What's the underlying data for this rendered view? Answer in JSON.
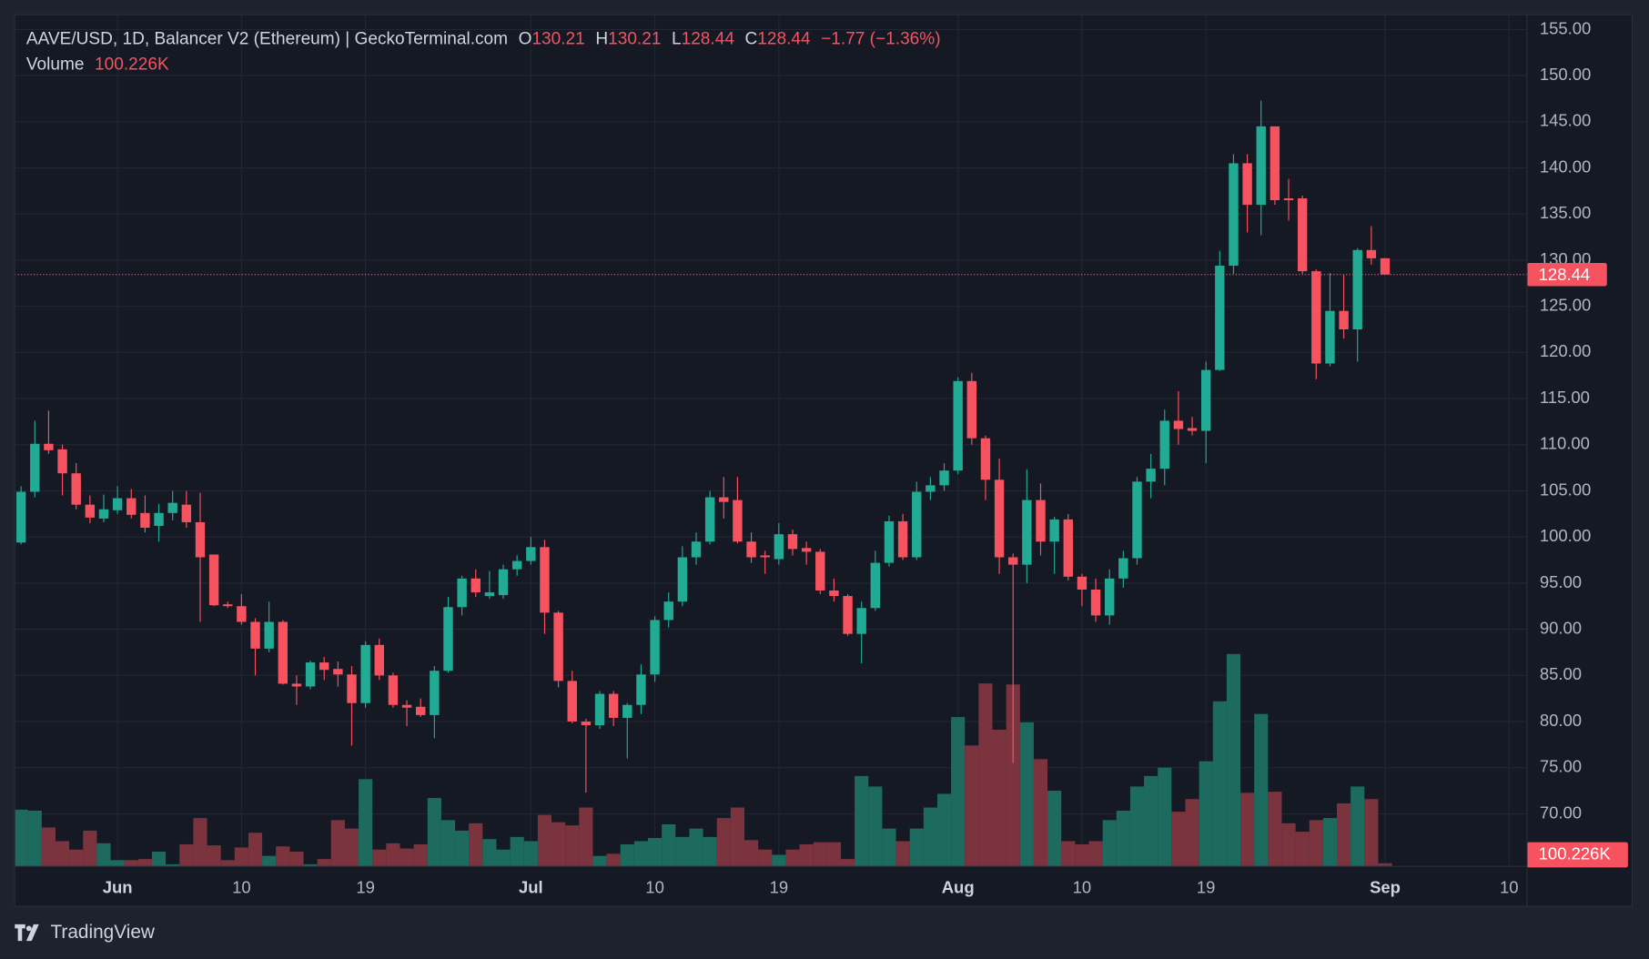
{
  "header": {
    "title": "AAVE/USD, 1D, Balancer V2 (Ethereum) | GeckoTerminal.com",
    "open_label": "O",
    "high_label": "H",
    "low_label": "L",
    "close_label": "C",
    "change": "−1.77 (−1.36%)",
    "volume_label": "Volume",
    "volume_value": "100.226K"
  },
  "brand": "TradingView",
  "chart_data": {
    "type": "candlestick",
    "up_color": "#22ab94",
    "down_color": "#f7525f",
    "volume_up_color": "#1d6b5f",
    "volume_down_color": "#7b343e",
    "grid": true,
    "xlim": [
      -0.46,
      109.3
    ],
    "xticks": [
      {
        "value": 7,
        "label": "Jun"
      },
      {
        "value": 16,
        "label": "10"
      },
      {
        "value": 25,
        "label": "19"
      },
      {
        "value": 37,
        "label": "Jul"
      },
      {
        "value": 46,
        "label": "10"
      },
      {
        "value": 55,
        "label": "19"
      },
      {
        "value": 68,
        "label": "Aug"
      },
      {
        "value": 77,
        "label": "10"
      },
      {
        "value": 86,
        "label": "19"
      },
      {
        "value": 99,
        "label": "Sep"
      },
      {
        "value": 108,
        "label": "10"
      }
    ],
    "ylim": [
      64.3,
      156.6
    ],
    "yticks": [
      {
        "value": 155,
        "label": "155.00"
      },
      {
        "value": 150,
        "label": "150.00"
      },
      {
        "value": 145,
        "label": "145.00"
      },
      {
        "value": 140,
        "label": "140.00"
      },
      {
        "value": 135,
        "label": "135.00"
      },
      {
        "value": 130,
        "label": "130.00"
      },
      {
        "value": 125,
        "label": "125.00"
      },
      {
        "value": 120,
        "label": "120.00"
      },
      {
        "value": 115,
        "label": "115.00"
      },
      {
        "value": 110,
        "label": "110.00"
      },
      {
        "value": 105,
        "label": "105.00"
      },
      {
        "value": 100,
        "label": "100.00"
      },
      {
        "value": 95,
        "label": "95.00"
      },
      {
        "value": 90,
        "label": "90.00"
      },
      {
        "value": 85,
        "label": "85.00"
      },
      {
        "value": 80,
        "label": "80.00"
      },
      {
        "value": 75,
        "label": "75.00"
      },
      {
        "value": 70,
        "label": "70.00"
      }
    ],
    "open": [
      99.4,
      104.9,
      110.1,
      109.5,
      106.9,
      103.5,
      102.0,
      102.9,
      104.2,
      102.6,
      101.2,
      102.6,
      103.5,
      101.6,
      98.1,
      92.7,
      92.5,
      90.8,
      87.9,
      90.8,
      84.1,
      83.8,
      86.4,
      85.7,
      85.1,
      82.0,
      88.3,
      85.0,
      81.8,
      81.6,
      80.7,
      85.5,
      92.4,
      95.5,
      93.6,
      93.7,
      96.5,
      97.4,
      98.9,
      91.8,
      84.4,
      80.0,
      79.6,
      83.0,
      80.4,
      81.8,
      85.1,
      91.0,
      93.0,
      97.8,
      99.5,
      104.3,
      104.0,
      99.5,
      98.0,
      97.6,
      100.3,
      98.8,
      98.4,
      94.2,
      93.6,
      89.5,
      92.3,
      97.2,
      101.7,
      97.8,
      104.9,
      105.6,
      107.2,
      116.9,
      110.7,
      106.2,
      97.8,
      97.0,
      104.0,
      99.5,
      101.9,
      95.7,
      94.3,
      91.5,
      95.5,
      97.7,
      106.0,
      107.4,
      112.6,
      111.8,
      111.5,
      118.1,
      129.4,
      140.5,
      136.0,
      144.5,
      136.7,
      136.7,
      128.8,
      118.8,
      124.5,
      122.5,
      131.1,
      130.21
    ],
    "high": [
      105.5,
      112.6,
      113.7,
      110.0,
      108.0,
      104.5,
      104.6,
      105.5,
      105.2,
      104.5,
      103.6,
      105.0,
      105.0,
      104.8,
      98.1,
      93.0,
      93.8,
      91.2,
      93.0,
      91.0,
      85.0,
      86.6,
      87.0,
      86.5,
      86.0,
      88.7,
      89.0,
      85.3,
      82.3,
      82.5,
      86.0,
      93.5,
      95.8,
      96.5,
      96.3,
      97.0,
      98.0,
      100.0,
      99.7,
      92.0,
      85.5,
      80.3,
      83.3,
      83.3,
      82.0,
      86.2,
      91.4,
      94.0,
      99.0,
      100.5,
      105.0,
      106.5,
      106.5,
      100.5,
      98.5,
      101.5,
      100.8,
      99.5,
      98.7,
      95.5,
      93.8,
      93.0,
      98.5,
      102.3,
      102.5,
      106.0,
      106.5,
      108.0,
      117.3,
      117.8,
      111.0,
      108.5,
      98.2,
      107.3,
      105.8,
      102.2,
      102.5,
      96.0,
      95.5,
      96.5,
      98.5,
      106.5,
      109.0,
      113.8,
      115.8,
      113.0,
      119.0,
      131.0,
      141.5,
      141.5,
      147.3,
      144.5,
      138.8,
      137.0,
      129.0,
      128.6,
      128.4,
      131.3,
      133.7,
      130.21
    ],
    "low": [
      99.2,
      104.3,
      109.0,
      104.5,
      103.0,
      101.5,
      101.6,
      102.5,
      102.0,
      100.5,
      99.5,
      101.8,
      101.0,
      90.8,
      92.5,
      92.3,
      90.5,
      85.0,
      87.5,
      84.0,
      81.8,
      83.5,
      84.5,
      83.8,
      77.4,
      81.5,
      84.5,
      81.5,
      79.5,
      80.5,
      78.2,
      85.3,
      91.5,
      93.5,
      93.3,
      93.3,
      95.8,
      97.0,
      89.5,
      83.7,
      79.8,
      72.3,
      79.2,
      79.5,
      76.0,
      80.8,
      84.3,
      90.2,
      92.5,
      97.0,
      99.2,
      102.0,
      99.3,
      97.2,
      96.0,
      97.0,
      98.0,
      97.0,
      93.8,
      93.0,
      89.3,
      86.3,
      92.0,
      96.8,
      97.5,
      97.5,
      104.0,
      105.0,
      106.8,
      110.0,
      104.0,
      96.0,
      75.5,
      95.0,
      98.0,
      96.0,
      95.3,
      92.5,
      90.8,
      90.5,
      94.5,
      97.0,
      104.2,
      105.6,
      110.0,
      111.0,
      108.0,
      118.0,
      128.5,
      133.0,
      132.7,
      136.0,
      134.3,
      128.5,
      117.1,
      118.5,
      121.5,
      119.0,
      129.5,
      128.44
    ],
    "close": [
      104.9,
      110.1,
      109.4,
      106.9,
      103.5,
      102.1,
      103.0,
      104.2,
      102.4,
      101.0,
      102.6,
      103.7,
      101.6,
      97.8,
      92.6,
      92.5,
      90.8,
      87.9,
      90.8,
      84.1,
      83.8,
      86.4,
      85.6,
      85.1,
      82.0,
      88.3,
      85.0,
      81.8,
      81.5,
      80.7,
      85.5,
      92.4,
      95.5,
      94.0,
      94.0,
      96.5,
      97.4,
      98.9,
      91.8,
      84.4,
      80.0,
      79.6,
      83.0,
      80.4,
      81.8,
      85.1,
      91.0,
      93.0,
      97.8,
      99.5,
      104.3,
      103.8,
      99.5,
      97.8,
      97.8,
      100.3,
      98.7,
      98.4,
      94.2,
      93.6,
      89.5,
      92.3,
      97.2,
      101.7,
      97.8,
      104.9,
      105.6,
      107.2,
      116.9,
      110.7,
      106.2,
      97.8,
      97.0,
      104.0,
      99.5,
      101.9,
      95.7,
      94.3,
      91.5,
      95.5,
      97.7,
      106.0,
      107.4,
      112.6,
      111.7,
      111.5,
      118.1,
      129.4,
      140.5,
      136.0,
      144.5,
      136.5,
      136.5,
      128.8,
      118.8,
      124.5,
      122.5,
      131.1,
      130.2,
      128.44
    ],
    "volume": [
      1804000,
      1770000,
      1236000,
      802000,
      534000,
      1136000,
      735000,
      200000,
      200000,
      234000,
      468000,
      67000,
      701000,
      1536000,
      668000,
      200000,
      601000,
      1069000,
      334000,
      635000,
      468000,
      67000,
      234000,
      1470000,
      1202000,
      2772000,
      534000,
      735000,
      568000,
      701000,
      2171000,
      1470000,
      1136000,
      1369000,
      868000,
      534000,
      935000,
      802000,
      1637000,
      1403000,
      1303000,
      1870000,
      334000,
      401000,
      701000,
      802000,
      902000,
      1336000,
      935000,
      1202000,
      935000,
      1536000,
      1870000,
      835000,
      534000,
      367000,
      534000,
      701000,
      768000,
      768000,
      234000,
      2872000,
      2538000,
      1202000,
      802000,
      1202000,
      1870000,
      2305000,
      4743000,
      3841000,
      5812000,
      4342000,
      5778000,
      4576000,
      3407000,
      2405000,
      802000,
      701000,
      802000,
      1470000,
      1770000,
      2538000,
      2872000,
      3140000,
      1737000,
      2138000,
      3340000,
      5244000,
      6747000,
      2338000,
      4843000,
      2371000,
      1369000,
      1102000,
      1470000,
      1536000,
      2004000,
      2538000,
      2138000,
      100226
    ]
  }
}
